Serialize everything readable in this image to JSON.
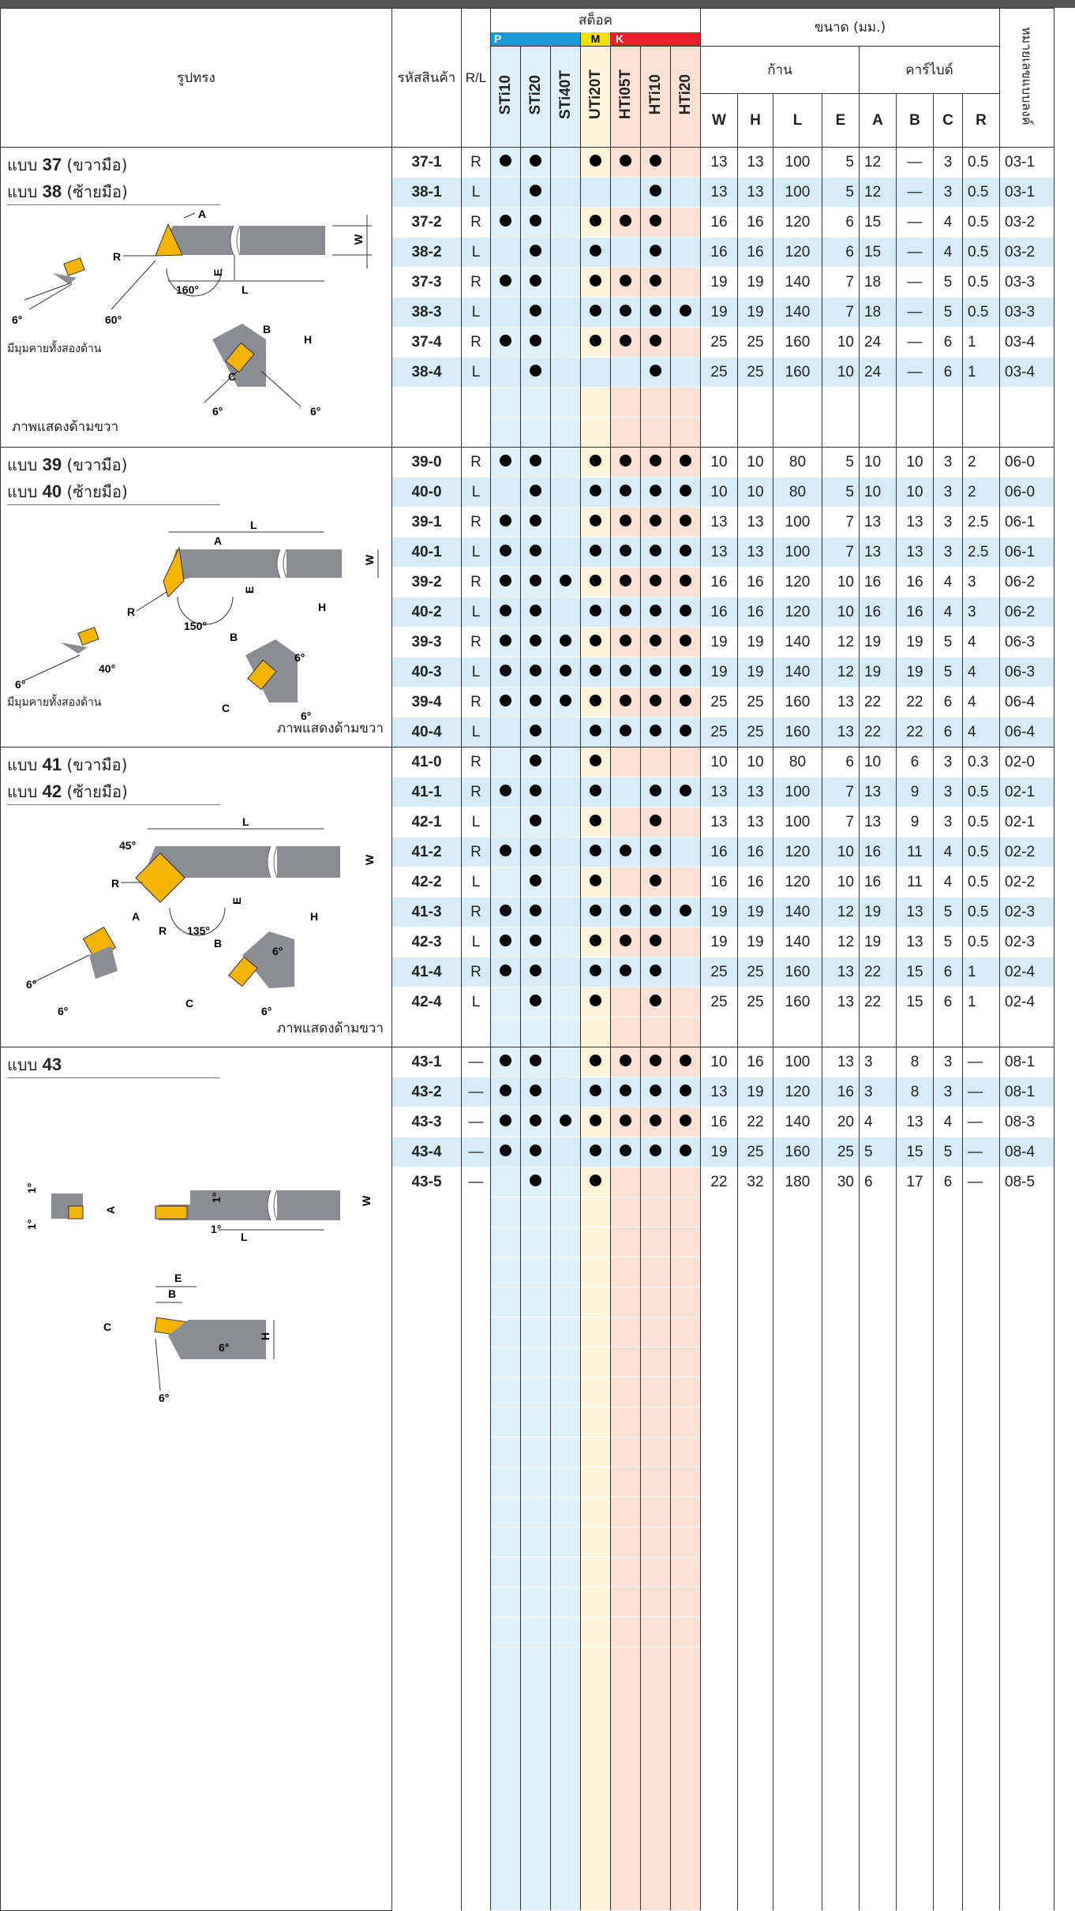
{
  "header": {
    "shape": "รูปทรง",
    "code": "รหัสสินค้า",
    "rl": "R/L",
    "stock": "สต็อค",
    "group_p": "P",
    "group_m": "M",
    "group_k": "K",
    "grades": [
      "STi10",
      "STi20",
      "STi40T",
      "UTi20T",
      "HTi05T",
      "HTi10",
      "HTi20"
    ],
    "size": "ขนาด (มม.)",
    "shank": "ก้าน",
    "carbide": "คาร์ไบด์",
    "dims": [
      "W",
      "H",
      "L",
      "E",
      "A",
      "B",
      "C",
      "R"
    ],
    "drawing_no": "หมายเลขแบบลงค์"
  },
  "sections": [
    {
      "title_right": "แบบ",
      "num_right": "37",
      "suffix_right": "(ขวามือ)",
      "title_left": "แบบ",
      "num_left": "38",
      "suffix_left": "(ซ้ายมือ)",
      "note": "มีมุมคายทั้งสองด้าน",
      "view": "ภาพแสดงด้ามขวา",
      "angle_main": "160°",
      "angle_side": "60°",
      "angle_small": "6°",
      "rows": [
        {
          "code": "37-1",
          "rl": "R",
          "g": [
            1,
            1,
            0,
            1,
            1,
            1,
            0
          ],
          "d": [
            "13",
            "13",
            "100",
            "5",
            "12",
            "—",
            "3",
            "0.5"
          ],
          "no": "03-1"
        },
        {
          "code": "38-1",
          "rl": "L",
          "g": [
            0,
            1,
            0,
            0,
            0,
            1,
            0
          ],
          "d": [
            "13",
            "13",
            "100",
            "5",
            "12",
            "—",
            "3",
            "0.5"
          ],
          "no": "03-1"
        },
        {
          "code": "37-2",
          "rl": "R",
          "g": [
            1,
            1,
            0,
            1,
            1,
            1,
            0
          ],
          "d": [
            "16",
            "16",
            "120",
            "6",
            "15",
            "—",
            "4",
            "0.5"
          ],
          "no": "03-2"
        },
        {
          "code": "38-2",
          "rl": "L",
          "g": [
            0,
            1,
            0,
            1,
            0,
            1,
            0
          ],
          "d": [
            "16",
            "16",
            "120",
            "6",
            "15",
            "—",
            "4",
            "0.5"
          ],
          "no": "03-2"
        },
        {
          "code": "37-3",
          "rl": "R",
          "g": [
            1,
            1,
            0,
            1,
            1,
            1,
            0
          ],
          "d": [
            "19",
            "19",
            "140",
            "7",
            "18",
            "—",
            "5",
            "0.5"
          ],
          "no": "03-3"
        },
        {
          "code": "38-3",
          "rl": "L",
          "g": [
            0,
            1,
            0,
            1,
            1,
            1,
            1
          ],
          "d": [
            "19",
            "19",
            "140",
            "7",
            "18",
            "—",
            "5",
            "0.5"
          ],
          "no": "03-3"
        },
        {
          "code": "37-4",
          "rl": "R",
          "g": [
            1,
            1,
            0,
            1,
            1,
            1,
            0
          ],
          "d": [
            "25",
            "25",
            "160",
            "10",
            "24",
            "—",
            "6",
            "1"
          ],
          "no": "03-4"
        },
        {
          "code": "38-4",
          "rl": "L",
          "g": [
            0,
            1,
            0,
            0,
            0,
            1,
            0
          ],
          "d": [
            "25",
            "25",
            "160",
            "10",
            "24",
            "—",
            "6",
            "1"
          ],
          "no": "03-4"
        }
      ]
    },
    {
      "title_right": "แบบ",
      "num_right": "39",
      "suffix_right": "(ขวามือ)",
      "title_left": "แบบ",
      "num_left": "40",
      "suffix_left": "(ซ้ายมือ)",
      "note": "มีมุมคายทั้งสองด้าน",
      "view": "ภาพแสดงด้ามขวา",
      "angle_main": "150°",
      "angle_side": "40°",
      "angle_small": "6°",
      "rows": [
        {
          "code": "39-0",
          "rl": "R",
          "g": [
            1,
            1,
            0,
            1,
            1,
            1,
            1
          ],
          "d": [
            "10",
            "10",
            "80",
            "5",
            "10",
            "10",
            "3",
            "2"
          ],
          "no": "06-0"
        },
        {
          "code": "40-0",
          "rl": "L",
          "g": [
            0,
            1,
            0,
            1,
            1,
            1,
            1
          ],
          "d": [
            "10",
            "10",
            "80",
            "5",
            "10",
            "10",
            "3",
            "2"
          ],
          "no": "06-0"
        },
        {
          "code": "39-1",
          "rl": "R",
          "g": [
            1,
            1,
            0,
            1,
            1,
            1,
            1
          ],
          "d": [
            "13",
            "13",
            "100",
            "7",
            "13",
            "13",
            "3",
            "2.5"
          ],
          "no": "06-1"
        },
        {
          "code": "40-1",
          "rl": "L",
          "g": [
            1,
            1,
            0,
            1,
            1,
            1,
            1
          ],
          "d": [
            "13",
            "13",
            "100",
            "7",
            "13",
            "13",
            "3",
            "2.5"
          ],
          "no": "06-1"
        },
        {
          "code": "39-2",
          "rl": "R",
          "g": [
            1,
            1,
            1,
            1,
            1,
            1,
            1
          ],
          "d": [
            "16",
            "16",
            "120",
            "10",
            "16",
            "16",
            "4",
            "3"
          ],
          "no": "06-2"
        },
        {
          "code": "40-2",
          "rl": "L",
          "g": [
            1,
            1,
            0,
            1,
            1,
            1,
            1
          ],
          "d": [
            "16",
            "16",
            "120",
            "10",
            "16",
            "16",
            "4",
            "3"
          ],
          "no": "06-2"
        },
        {
          "code": "39-3",
          "rl": "R",
          "g": [
            1,
            1,
            1,
            1,
            1,
            1,
            1
          ],
          "d": [
            "19",
            "19",
            "140",
            "12",
            "19",
            "19",
            "5",
            "4"
          ],
          "no": "06-3"
        },
        {
          "code": "40-3",
          "rl": "L",
          "g": [
            1,
            1,
            1,
            1,
            1,
            1,
            1
          ],
          "d": [
            "19",
            "19",
            "140",
            "12",
            "19",
            "19",
            "5",
            "4"
          ],
          "no": "06-3"
        },
        {
          "code": "39-4",
          "rl": "R",
          "g": [
            1,
            1,
            1,
            1,
            1,
            1,
            1
          ],
          "d": [
            "25",
            "25",
            "160",
            "13",
            "22",
            "22",
            "6",
            "4"
          ],
          "no": "06-4"
        },
        {
          "code": "40-4",
          "rl": "L",
          "g": [
            0,
            1,
            0,
            1,
            1,
            1,
            1
          ],
          "d": [
            "25",
            "25",
            "160",
            "13",
            "22",
            "22",
            "6",
            "4"
          ],
          "no": "06-4"
        }
      ]
    },
    {
      "title_right": "แบบ",
      "num_right": "41",
      "suffix_right": "(ขวามือ)",
      "title_left": "แบบ",
      "num_left": "42",
      "suffix_left": "(ซ้ายมือ)",
      "view": "ภาพแสดงด้ามขวา",
      "angle_main": "135°",
      "angle_side": "45°",
      "angle_small": "6°",
      "rows": [
        {
          "code": "41-0",
          "rl": "R",
          "g": [
            0,
            1,
            0,
            1,
            0,
            0,
            0
          ],
          "d": [
            "10",
            "10",
            "80",
            "6",
            "10",
            "6",
            "3",
            "0.3"
          ],
          "no": "02-0"
        },
        {
          "code": "41-1",
          "rl": "R",
          "g": [
            1,
            1,
            0,
            1,
            0,
            1,
            1
          ],
          "d": [
            "13",
            "13",
            "100",
            "7",
            "13",
            "9",
            "3",
            "0.5"
          ],
          "no": "02-1"
        },
        {
          "code": "42-1",
          "rl": "L",
          "g": [
            0,
            1,
            0,
            1,
            0,
            1,
            0
          ],
          "d": [
            "13",
            "13",
            "100",
            "7",
            "13",
            "9",
            "3",
            "0.5"
          ],
          "no": "02-1"
        },
        {
          "code": "41-2",
          "rl": "R",
          "g": [
            1,
            1,
            0,
            1,
            1,
            1,
            0
          ],
          "d": [
            "16",
            "16",
            "120",
            "10",
            "16",
            "11",
            "4",
            "0.5"
          ],
          "no": "02-2"
        },
        {
          "code": "42-2",
          "rl": "L",
          "g": [
            0,
            1,
            0,
            1,
            0,
            1,
            0
          ],
          "d": [
            "16",
            "16",
            "120",
            "10",
            "16",
            "11",
            "4",
            "0.5"
          ],
          "no": "02-2"
        },
        {
          "code": "41-3",
          "rl": "R",
          "g": [
            1,
            1,
            0,
            1,
            1,
            1,
            1
          ],
          "d": [
            "19",
            "19",
            "140",
            "12",
            "19",
            "13",
            "5",
            "0.5"
          ],
          "no": "02-3"
        },
        {
          "code": "42-3",
          "rl": "L",
          "g": [
            1,
            1,
            0,
            1,
            1,
            1,
            0
          ],
          "d": [
            "19",
            "19",
            "140",
            "12",
            "19",
            "13",
            "5",
            "0.5"
          ],
          "no": "02-3"
        },
        {
          "code": "41-4",
          "rl": "R",
          "g": [
            1,
            1,
            0,
            1,
            1,
            1,
            0
          ],
          "d": [
            "25",
            "25",
            "160",
            "13",
            "22",
            "15",
            "6",
            "1"
          ],
          "no": "02-4"
        },
        {
          "code": "42-4",
          "rl": "L",
          "g": [
            0,
            1,
            0,
            1,
            0,
            1,
            0
          ],
          "d": [
            "25",
            "25",
            "160",
            "13",
            "22",
            "15",
            "6",
            "1"
          ],
          "no": "02-4"
        }
      ]
    },
    {
      "title_right": "แบบ",
      "num_right": "43",
      "angle_small": "6°",
      "angle_tiny": "1°",
      "rows": [
        {
          "code": "43-1",
          "rl": "—",
          "g": [
            1,
            1,
            0,
            1,
            1,
            1,
            1
          ],
          "d": [
            "10",
            "16",
            "100",
            "13",
            "3",
            "8",
            "3",
            "—"
          ],
          "no": "08-1"
        },
        {
          "code": "43-2",
          "rl": "—",
          "g": [
            1,
            1,
            0,
            1,
            1,
            1,
            1
          ],
          "d": [
            "13",
            "19",
            "120",
            "16",
            "3",
            "8",
            "3",
            "—"
          ],
          "no": "08-1"
        },
        {
          "code": "43-3",
          "rl": "—",
          "g": [
            1,
            1,
            1,
            1,
            1,
            1,
            1
          ],
          "d": [
            "16",
            "22",
            "140",
            "20",
            "4",
            "13",
            "4",
            "—"
          ],
          "no": "08-3"
        },
        {
          "code": "43-4",
          "rl": "—",
          "g": [
            1,
            1,
            0,
            1,
            1,
            1,
            1
          ],
          "d": [
            "19",
            "25",
            "160",
            "25",
            "5",
            "15",
            "5",
            "—"
          ],
          "no": "08-4"
        },
        {
          "code": "43-5",
          "rl": "—",
          "g": [
            0,
            1,
            0,
            1,
            0,
            0,
            0
          ],
          "d": [
            "22",
            "32",
            "180",
            "30",
            "6",
            "17",
            "6",
            "—"
          ],
          "no": "08-5"
        }
      ]
    }
  ],
  "colors": {
    "p": "#1a9ad6",
    "m": "#f5e100",
    "k": "#e8212b",
    "row_alt": "#d6ecf8",
    "insert": "#f4b400",
    "shank": "#8c8c94"
  }
}
